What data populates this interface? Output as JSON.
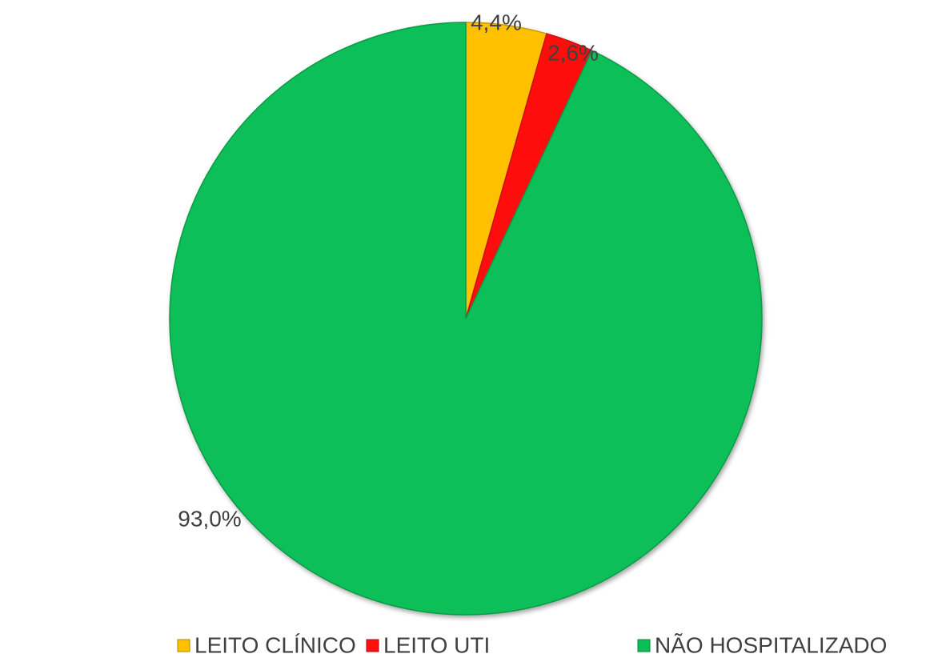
{
  "chart_data": {
    "type": "pie",
    "categories": [
      "LEITO CLÍNICO",
      "LEITO UTI",
      "NÃO HOSPITALIZADO"
    ],
    "values": [
      4.4,
      2.6,
      93.0
    ],
    "value_labels": [
      "4,4%",
      "2,6%",
      "93,0%"
    ],
    "colors": [
      "#FFC000",
      "#FF1010",
      "#0BBF58"
    ],
    "legend": "bottom"
  }
}
